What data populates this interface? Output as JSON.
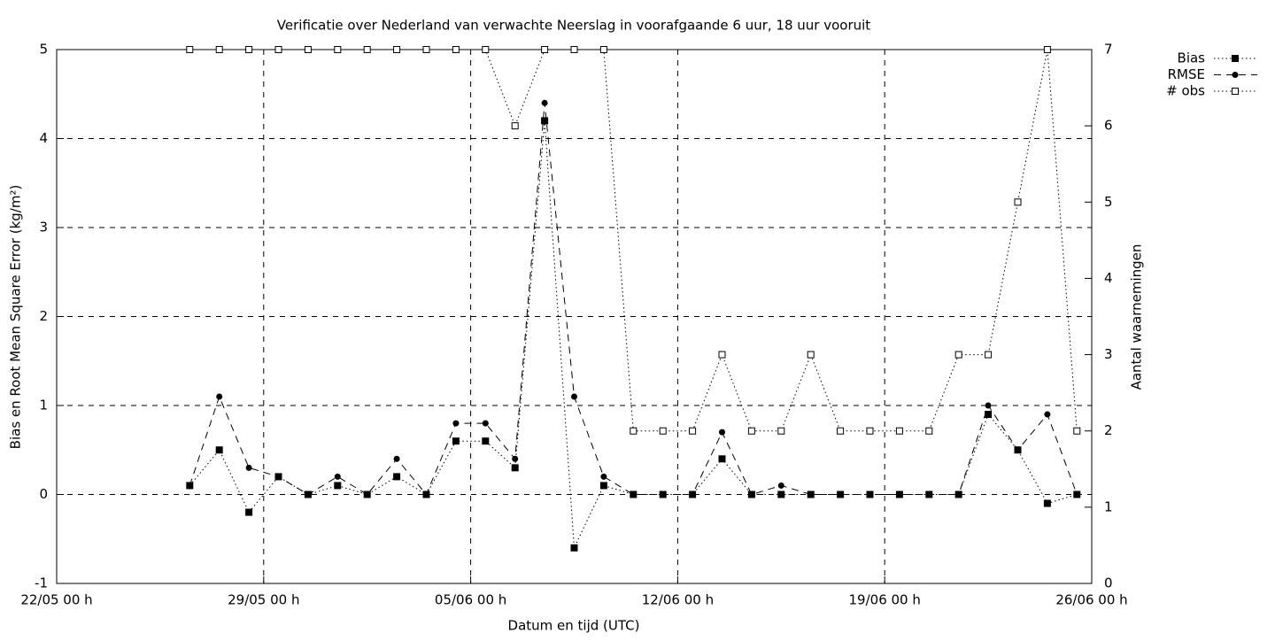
{
  "chart_data": {
    "type": "line",
    "title": "Verificatie over Nederland van verwachte Neerslag in voorafgaande 6 uur, 18 uur vooruit",
    "x_label": "Datum en tijd (UTC)",
    "y_label": "Bias en Root Mean Square Error (kg/m²)",
    "y2_label": "Aantal waarnemingen",
    "x": [
      "26/05 12 h",
      "27/05 12 h",
      "28/05 12 h",
      "29/05 12 h",
      "30/05 12 h",
      "31/05 12 h",
      "01/06 12 h",
      "02/06 12 h",
      "03/06 12 h",
      "04/06 12 h",
      "05/06 12 h",
      "06/06 12 h",
      "07/06 12 h",
      "08/06 12 h",
      "09/06 12 h",
      "10/06 12 h",
      "11/06 12 h",
      "12/06 12 h",
      "13/06 12 h",
      "14/06 12 h",
      "15/06 12 h",
      "16/06 12 h",
      "17/06 12 h",
      "18/06 12 h",
      "19/06 12 h",
      "20/06 12 h",
      "21/06 12 h",
      "22/06 12 h",
      "23/06 12 h",
      "24/06 12 h",
      "25/06 12 h"
    ],
    "series": [
      {
        "name": "Bias",
        "color": "#000000",
        "line_style": "dotted",
        "marker": "filled-square",
        "values": [
          0.1,
          0.5,
          -0.2,
          0.2,
          0,
          0.1,
          0,
          0.2,
          0,
          0.6,
          0.6,
          0.3,
          4.2,
          -0.6,
          0.1,
          0,
          0,
          0,
          0.4,
          0,
          0,
          0,
          0,
          0,
          0,
          0,
          0,
          0.9,
          0.5,
          -0.1,
          0
        ]
      },
      {
        "name": "RMSE",
        "color": "#000000",
        "line_style": "dashed",
        "marker": "circle",
        "values": [
          0.1,
          1.1,
          0.3,
          0.2,
          0,
          0.2,
          0,
          0.4,
          0,
          0.8,
          0.8,
          0.4,
          4.4,
          1.1,
          0.2,
          0,
          0,
          0,
          0.7,
          0,
          0.1,
          0,
          0,
          0,
          0,
          0,
          0,
          1.0,
          0.5,
          0.9,
          0
        ]
      },
      {
        "name": "# obs",
        "color": "#000000",
        "line_style": "dotted",
        "marker": "open-square",
        "axis": "y2",
        "values": [
          7,
          7,
          7,
          7,
          7,
          7,
          7,
          7,
          7,
          7,
          7,
          6,
          7,
          7,
          7,
          2,
          2,
          2,
          3,
          2,
          2,
          3,
          2,
          2,
          2,
          2,
          3,
          3,
          5,
          7,
          2
        ]
      }
    ],
    "xlim": [
      "22/05 00 h",
      "26/06 00 h"
    ],
    "xticks": [
      "22/05 00 h",
      "29/05 00 h",
      "05/06 00 h",
      "12/06 00 h",
      "19/06 00 h",
      "26/06 00 h"
    ],
    "ylim": [
      -1,
      5
    ],
    "yticks": [
      -1,
      0,
      1,
      2,
      3,
      4,
      5
    ],
    "y2lim": [
      0,
      7
    ],
    "y2ticks": [
      0,
      1,
      2,
      3,
      4,
      5,
      6,
      7
    ],
    "grid": true,
    "legend_position": "outside-top-right"
  }
}
